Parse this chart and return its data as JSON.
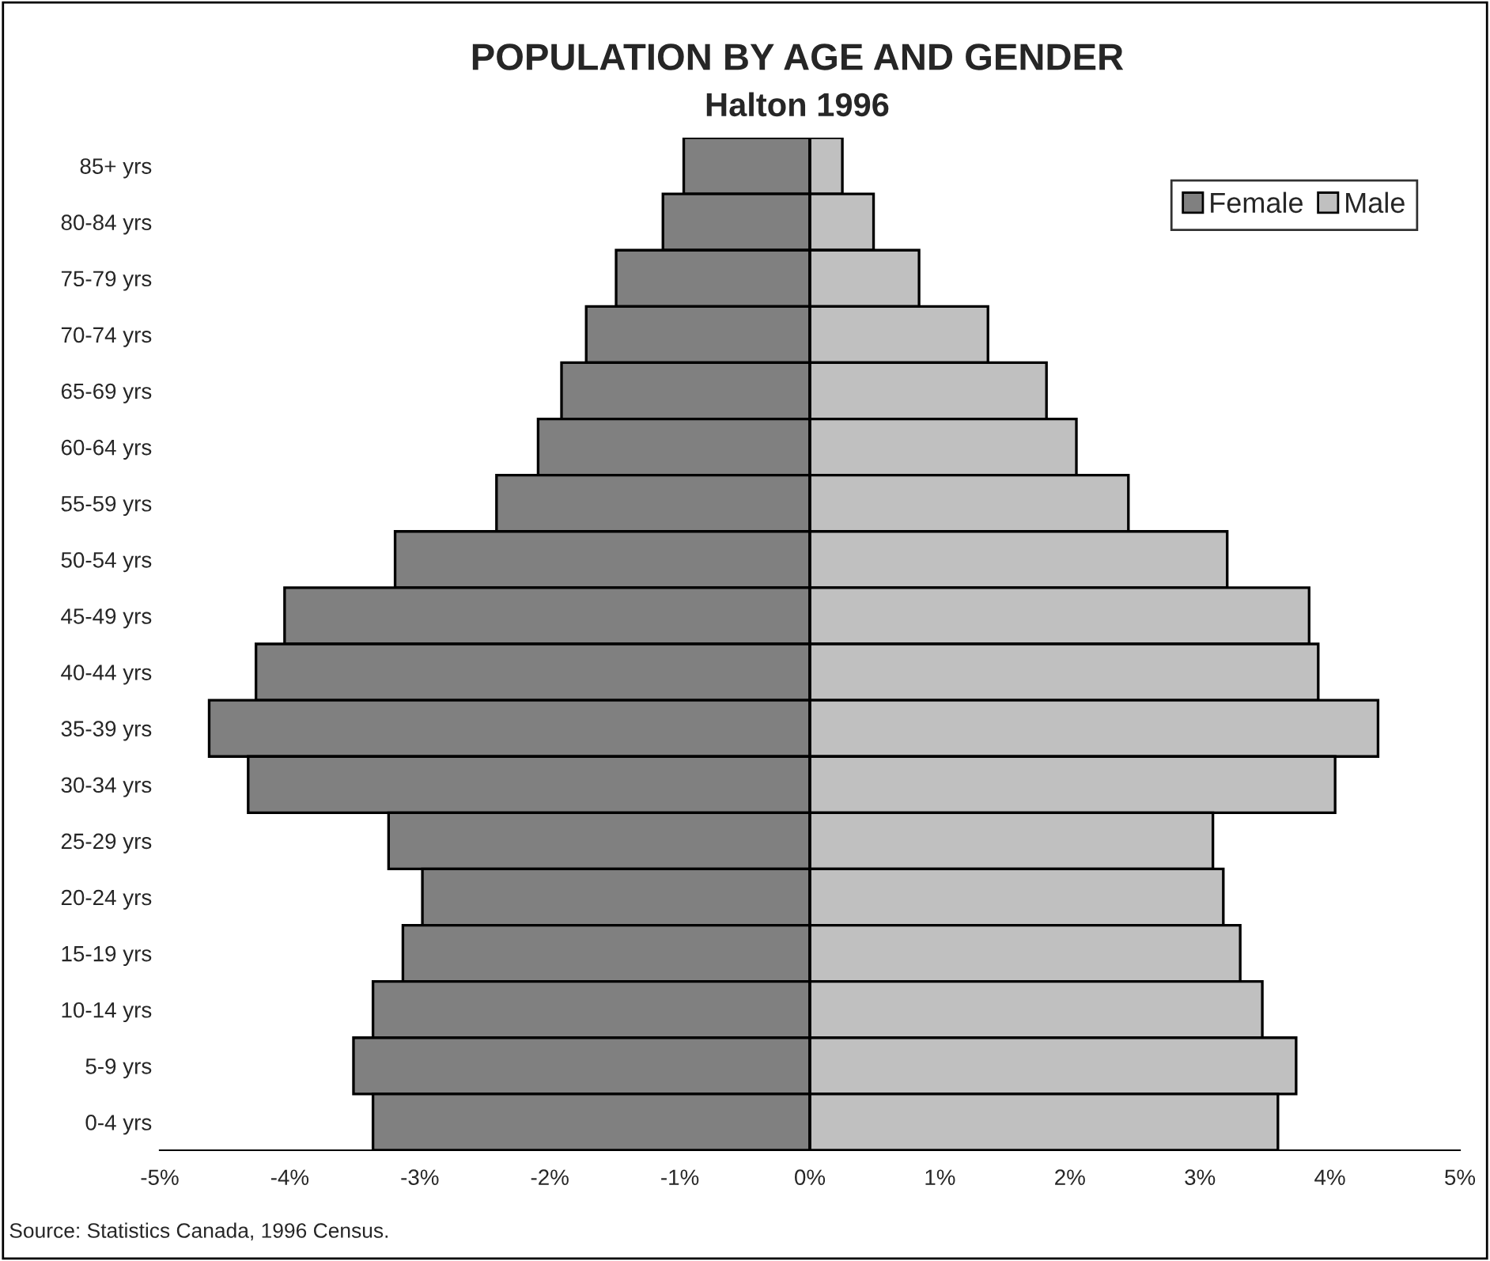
{
  "chart_data": {
    "type": "bar",
    "orientation": "horizontal",
    "stacked": true,
    "title": "POPULATION BY AGE AND GENDER",
    "subtitle": "Halton 1996",
    "categories": [
      "85+ yrs",
      "80-84 yrs",
      "75-79 yrs",
      "70-74 yrs",
      "65-69 yrs",
      "60-64 yrs",
      "55-59 yrs",
      "50-54 yrs",
      "45-49 yrs",
      "40-44 yrs",
      "35-39 yrs",
      "30-34 yrs",
      "25-29 yrs",
      "20-24 yrs",
      "15-19 yrs",
      "10-14 yrs",
      "5-9 yrs",
      "0-4 yrs"
    ],
    "series": [
      {
        "name": "Female",
        "color": "#808080",
        "values": [
          -0.97,
          -1.13,
          -1.49,
          -1.72,
          -1.91,
          -2.09,
          -2.41,
          -3.19,
          -4.04,
          -4.26,
          -4.62,
          -4.32,
          -3.24,
          -2.98,
          -3.13,
          -3.36,
          -3.51,
          -3.36
        ]
      },
      {
        "name": "Male",
        "color": "#c0c0c0",
        "values": [
          0.25,
          0.49,
          0.84,
          1.37,
          1.82,
          2.05,
          2.45,
          3.21,
          3.84,
          3.91,
          4.37,
          4.04,
          3.1,
          3.18,
          3.31,
          3.48,
          3.74,
          3.6
        ]
      }
    ],
    "xlim": [
      -5,
      5
    ],
    "xticks": [
      {
        "value": -5,
        "label": "-5%"
      },
      {
        "value": -4,
        "label": "-4%"
      },
      {
        "value": -3,
        "label": "-3%"
      },
      {
        "value": -2,
        "label": "-2%"
      },
      {
        "value": -1,
        "label": "-1%"
      },
      {
        "value": 0,
        "label": "0%"
      },
      {
        "value": 1,
        "label": "1%"
      },
      {
        "value": 2,
        "label": "2%"
      },
      {
        "value": 3,
        "label": "3%"
      },
      {
        "value": 4,
        "label": "4%"
      },
      {
        "value": 5,
        "label": "5%"
      }
    ],
    "legend": "top right",
    "annotations": [
      "Source: Statistics Canada, 1996 Census."
    ]
  }
}
